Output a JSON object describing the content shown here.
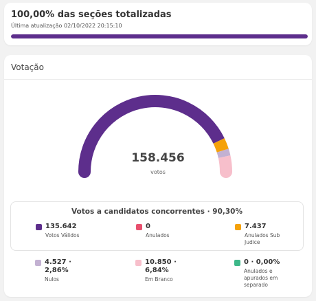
{
  "progress": {
    "title": "100,00% das seções totalizadas",
    "updated": "Última atualização 02/10/2022 20:15:10",
    "percent": 100
  },
  "votacao": {
    "title": "Votação",
    "total_value": "158.456",
    "total_label": "votos",
    "gauge_fractions": [
      {
        "key": "validos",
        "fraction": 0.856,
        "color": "#5d2e8c"
      },
      {
        "key": "anulados",
        "fraction": 0.0,
        "color": "#e8506e"
      },
      {
        "key": "sub_judice",
        "fraction": 0.0469,
        "color": "#f5a20a"
      },
      {
        "key": "nulos",
        "fraction": 0.0286,
        "color": "#c3b1d2"
      },
      {
        "key": "brancos",
        "fraction": 0.0684,
        "color": "#f7bfcb"
      },
      {
        "key": "separado",
        "fraction": 0.0,
        "color": "#3db889"
      }
    ]
  },
  "valid_box": {
    "title": "Votos a candidatos concorrentes · 90,30%"
  },
  "stats": {
    "validos": {
      "value": "135.642",
      "label": "Votos Válidos",
      "color": "#5d2e8c"
    },
    "anulados": {
      "value": "0",
      "label": "Anulados",
      "color": "#e8506e"
    },
    "sub_judice": {
      "value": "7.437",
      "label": "Anulados Sub Judice",
      "color": "#f5a20a"
    },
    "nulos": {
      "value": "4.527 · 2,86%",
      "label": "Nulos",
      "color": "#c3b1d2"
    },
    "brancos": {
      "value": "10.850 · 6,84%",
      "label": "Em Branco",
      "color": "#f7bfcb"
    },
    "separado": {
      "value": "0 · 0,00%",
      "label": "Anulados e apurados em separado",
      "color": "#3db889"
    }
  }
}
